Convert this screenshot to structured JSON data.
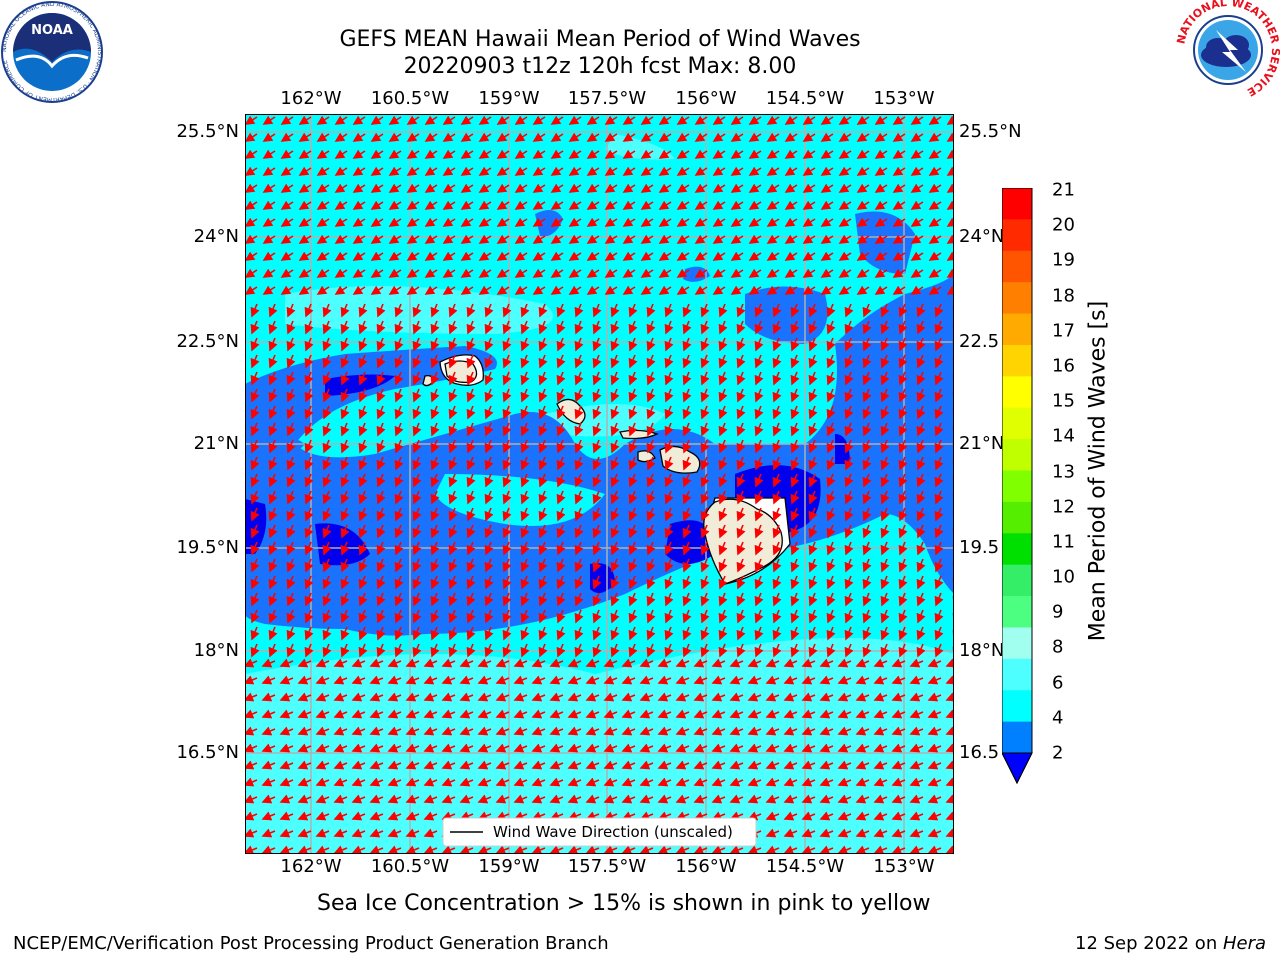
{
  "header": {
    "title_line1": "GEFS MEAN Hawaii Mean Period of Wind Waves",
    "title_line2": "20220903 t12z 120h fcst   Max: 8.00"
  },
  "axes": {
    "lon_labels": [
      "162°W",
      "160.5°W",
      "159°W",
      "157.5°W",
      "156°W",
      "154.5°W",
      "153°W"
    ],
    "lat_labels": [
      "25.5°N",
      "24°N",
      "22.5°N",
      "21°N",
      "19.5°N",
      "18°N",
      "16.5°N"
    ],
    "lat_labels_right": [
      "25.5°N",
      "24°N",
      "22.5",
      "21°N",
      "19.5",
      "18°N",
      "16.5"
    ]
  },
  "legend": {
    "arrow_label": "Wind Wave Direction (unscaled)"
  },
  "colorbar": {
    "label": "Mean Period of Wind Waves [s]",
    "ticks": [
      "21",
      "20",
      "19",
      "18",
      "17",
      "16",
      "15",
      "14",
      "13",
      "12",
      "11",
      "10",
      "9",
      "8",
      "6",
      "4",
      "2"
    ],
    "colors": [
      "#ff0000",
      "#ff2a00",
      "#ff5500",
      "#ff8000",
      "#ffaa00",
      "#ffd400",
      "#ffff00",
      "#e0ff00",
      "#c0ff00",
      "#80ff00",
      "#55ee00",
      "#00e000",
      "#33ee66",
      "#4dff80",
      "#a0ffee",
      "#4dffff",
      "#00ffff",
      "#0080ff"
    ]
  },
  "footer": {
    "note": "Sea Ice Concentration > 15% is shown in pink to yellow",
    "credit": "NCEP/EMC/Verification Post Processing Product Generation Branch",
    "date_prefix": "12 Sep 2022 on ",
    "date_host": "Hera"
  },
  "logos": {
    "noaa_text": "NOAA",
    "noaa_ring_text": "NATIONAL OCEANIC AND ATMOSPHERIC ADMINISTRATION · U.S. DEPARTMENT OF COMMERCE",
    "nws_ring_text": "NATIONAL WEATHER SERVICE"
  }
}
